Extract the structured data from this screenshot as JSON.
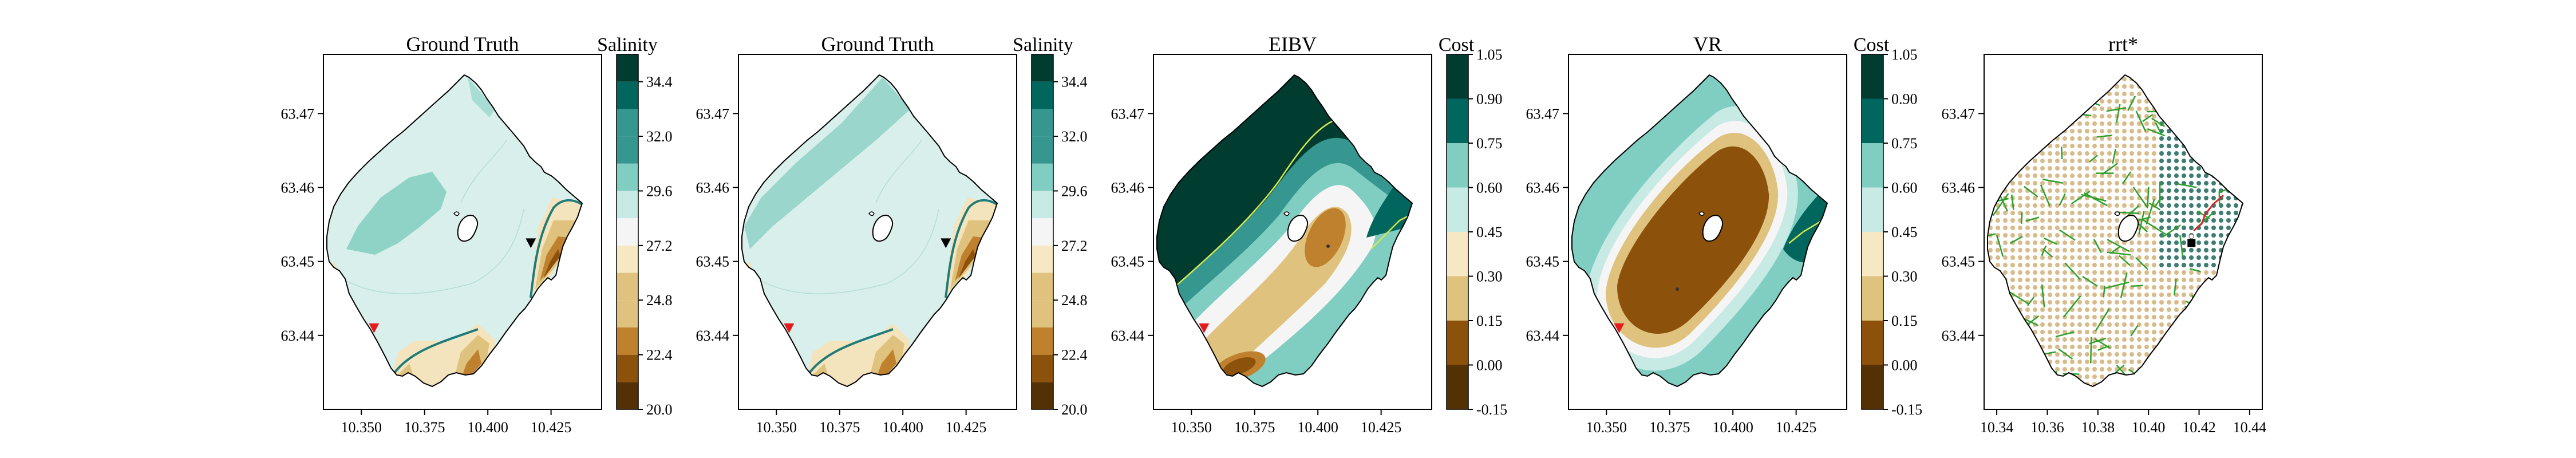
{
  "colors": {
    "brbg": [
      "#543005",
      "#8c510a",
      "#bf812d",
      "#dfc27d",
      "#f6e8c3",
      "#f5f5f5",
      "#c7eae5",
      "#80cdc1",
      "#35978f",
      "#01665e",
      "#003c30"
    ],
    "boundary": "#000000",
    "front": "#1f7a78",
    "marker_red": "#e41a1c",
    "marker_black": "#000000",
    "tree_edges": "#2ca02c",
    "path": "#d62728"
  },
  "chart_data": [
    {
      "type": "heatmap",
      "title": "Ground Truth",
      "colorbar_title": "Salinity",
      "colorbar_ticks": [
        "20.0",
        "22.4",
        "24.8",
        "27.2",
        "29.6",
        "32.0",
        "34.4"
      ],
      "colorbar_levels": [
        20.0,
        21.2,
        22.4,
        23.6,
        24.8,
        26.0,
        27.2,
        28.4,
        29.6,
        30.8,
        32.0,
        33.2,
        34.4,
        35.6
      ],
      "x_ticks": [
        "10.350",
        "10.375",
        "10.400",
        "10.425"
      ],
      "y_ticks": [
        "63.47",
        "63.46",
        "63.45",
        "63.44"
      ],
      "xlim": [
        10.335,
        10.445
      ],
      "ylim": [
        63.43,
        63.478
      ],
      "markers": [
        {
          "shape": "triangle-down",
          "color": "red",
          "lon": 10.355,
          "lat": 63.441
        },
        {
          "shape": "triangle-down",
          "color": "black",
          "lon": 10.417,
          "lat": 63.4525
        }
      ]
    },
    {
      "type": "heatmap",
      "title": "Ground Truth",
      "colorbar_title": "Salinity",
      "colorbar_ticks": [
        "20.0",
        "22.4",
        "24.8",
        "27.2",
        "29.6",
        "32.0",
        "34.4"
      ],
      "colorbar_levels": [
        20.0,
        21.2,
        22.4,
        23.6,
        24.8,
        26.0,
        27.2,
        28.4,
        29.6,
        30.8,
        32.0,
        33.2,
        34.4,
        35.6
      ],
      "x_ticks": [
        "10.350",
        "10.375",
        "10.400",
        "10.425"
      ],
      "y_ticks": [
        "63.47",
        "63.46",
        "63.45",
        "63.44"
      ],
      "xlim": [
        10.335,
        10.445
      ],
      "ylim": [
        63.43,
        63.478
      ],
      "markers": [
        {
          "shape": "triangle-down",
          "color": "red",
          "lon": 10.355,
          "lat": 63.441
        },
        {
          "shape": "triangle-down",
          "color": "black",
          "lon": 10.417,
          "lat": 63.4525
        }
      ]
    },
    {
      "type": "heatmap",
      "title": "EIBV",
      "colorbar_title": "Cost",
      "colorbar_ticks": [
        "-0.15",
        "0.00",
        "0.15",
        "0.30",
        "0.45",
        "0.60",
        "0.75",
        "0.90",
        "1.05"
      ],
      "colorbar_levels": [
        -0.15,
        0.0,
        0.15,
        0.3,
        0.45,
        0.6,
        0.75,
        0.9,
        1.05
      ],
      "x_ticks": [
        "10.350",
        "10.375",
        "10.400",
        "10.425"
      ],
      "y_ticks": [
        "63.47",
        "63.46",
        "63.45",
        "63.44"
      ],
      "xlim": [
        10.335,
        10.445
      ],
      "ylim": [
        63.43,
        63.478
      ],
      "markers": [
        {
          "shape": "triangle-down",
          "color": "red",
          "lon": 10.355,
          "lat": 63.441
        }
      ]
    },
    {
      "type": "heatmap",
      "title": "VR",
      "colorbar_title": "Cost",
      "colorbar_ticks": [
        "-0.15",
        "0.00",
        "0.15",
        "0.30",
        "0.45",
        "0.60",
        "0.75",
        "0.90",
        "1.05"
      ],
      "colorbar_levels": [
        -0.15,
        0.0,
        0.15,
        0.3,
        0.45,
        0.6,
        0.75,
        0.9,
        1.05
      ],
      "x_ticks": [
        "10.350",
        "10.375",
        "10.400",
        "10.425"
      ],
      "y_ticks": [
        "63.47",
        "63.46",
        "63.45",
        "63.44"
      ],
      "xlim": [
        10.335,
        10.445
      ],
      "ylim": [
        63.43,
        63.478
      ],
      "markers": [
        {
          "shape": "triangle-down",
          "color": "red",
          "lon": 10.355,
          "lat": 63.441
        }
      ]
    },
    {
      "type": "scatter",
      "title": "rrt*",
      "x_ticks": [
        "10.34",
        "10.36",
        "10.38",
        "10.40",
        "10.42",
        "10.44"
      ],
      "y_ticks": [
        "63.47",
        "63.46",
        "63.45",
        "63.44"
      ],
      "xlim": [
        10.335,
        10.445
      ],
      "ylim": [
        63.43,
        63.478
      ],
      "markers": [
        {
          "shape": "square",
          "color": "black",
          "lon": 10.417,
          "lat": 63.4525
        }
      ]
    }
  ]
}
